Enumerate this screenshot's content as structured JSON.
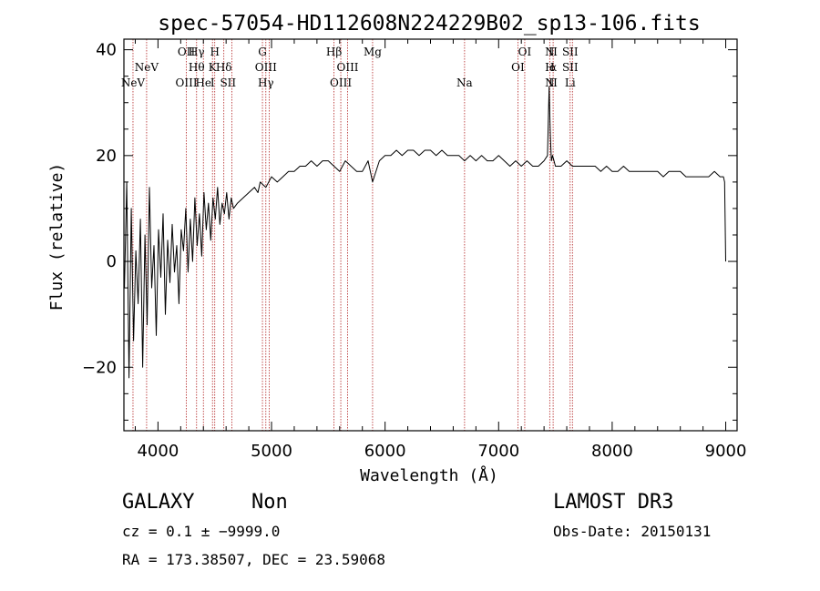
{
  "chart_data": {
    "type": "line",
    "title": "spec-57054-HD112608N224229B02_sp13-106.fits",
    "xlabel": "Wavelength (Å)",
    "ylabel": "Flux (relative)",
    "xlim": [
      3700,
      9100
    ],
    "ylim": [
      -32,
      42
    ],
    "x_ticks": [
      4000,
      5000,
      6000,
      7000,
      8000,
      9000
    ],
    "x_tick_labels": [
      "4000",
      "5000",
      "6000",
      "7000",
      "8000",
      "9000"
    ],
    "y_ticks": [
      -20,
      0,
      20,
      40
    ],
    "y_tick_labels": [
      "−20",
      "0",
      "20",
      "40"
    ],
    "x_minor_step": 200,
    "y_minor_step": 5,
    "series": [
      {
        "name": "spectrum",
        "x": [
          3705,
          3725,
          3745,
          3765,
          3785,
          3805,
          3825,
          3845,
          3865,
          3885,
          3905,
          3925,
          3945,
          3965,
          3985,
          4005,
          4025,
          4045,
          4065,
          4085,
          4105,
          4125,
          4145,
          4165,
          4185,
          4205,
          4225,
          4245,
          4265,
          4285,
          4305,
          4325,
          4345,
          4365,
          4385,
          4405,
          4425,
          4445,
          4465,
          4485,
          4505,
          4525,
          4545,
          4565,
          4585,
          4605,
          4625,
          4645,
          4665,
          4700,
          4750,
          4800,
          4850,
          4880,
          4900,
          4950,
          5000,
          5050,
          5100,
          5150,
          5200,
          5250,
          5300,
          5350,
          5400,
          5450,
          5500,
          5550,
          5600,
          5650,
          5700,
          5750,
          5800,
          5850,
          5890,
          5950,
          6000,
          6050,
          6100,
          6150,
          6200,
          6250,
          6300,
          6350,
          6400,
          6450,
          6500,
          6550,
          6600,
          6650,
          6700,
          6750,
          6800,
          6850,
          6900,
          6950,
          7000,
          7050,
          7100,
          7150,
          7200,
          7250,
          7300,
          7350,
          7400,
          7430,
          7445,
          7455,
          7465,
          7475,
          7500,
          7550,
          7600,
          7650,
          7700,
          7750,
          7800,
          7850,
          7900,
          7950,
          8000,
          8050,
          8100,
          8150,
          8200,
          8250,
          8300,
          8350,
          8400,
          8450,
          8500,
          8550,
          8600,
          8650,
          8700,
          8750,
          8800,
          8850,
          8900,
          8950,
          8980,
          8990,
          9000
        ],
        "y": [
          -5,
          15,
          -22,
          10,
          -15,
          2,
          -8,
          8,
          -20,
          5,
          -12,
          14,
          -5,
          3,
          -14,
          6,
          -3,
          9,
          -10,
          4,
          -4,
          7,
          -2,
          3,
          -8,
          6,
          2,
          10,
          -2,
          8,
          0,
          12,
          3,
          9,
          1,
          13,
          6,
          11,
          4,
          12,
          8,
          14,
          7,
          11,
          9,
          13,
          8,
          12,
          10,
          11,
          12,
          13,
          14,
          13,
          15,
          14,
          16,
          15,
          16,
          17,
          17,
          18,
          18,
          19,
          18,
          19,
          19,
          18,
          17,
          19,
          18,
          17,
          17,
          19,
          15,
          19,
          20,
          20,
          21,
          20,
          21,
          21,
          20,
          21,
          21,
          20,
          21,
          20,
          20,
          20,
          19,
          20,
          19,
          20,
          19,
          19,
          20,
          19,
          18,
          19,
          18,
          19,
          18,
          18,
          19,
          20,
          33,
          24,
          19,
          20,
          18,
          18,
          19,
          18,
          18,
          18,
          18,
          18,
          17,
          18,
          17,
          17,
          18,
          17,
          17,
          17,
          17,
          17,
          17,
          16,
          17,
          17,
          17,
          16,
          16,
          16,
          16,
          16,
          17,
          16,
          16,
          15,
          0
        ]
      }
    ],
    "lines": [
      {
        "wl": 3780,
        "rows": [
          {
            "text": "NeV",
            "tier": 2
          }
        ]
      },
      {
        "wl": 3900,
        "rows": [
          {
            "text": "NeV",
            "tier": 1
          }
        ]
      },
      {
        "wl": 4250,
        "rows": [
          {
            "text": "OII",
            "tier": 0
          },
          {
            "text": "OIII",
            "tier": 2
          }
        ]
      },
      {
        "wl": 4340,
        "rows": [
          {
            "text": "Hγ",
            "tier": 0
          },
          {
            "text": "Hθ",
            "tier": 1
          }
        ]
      },
      {
        "wl": 4400,
        "rows": [
          {
            "text": "He",
            "tier": 2
          }
        ]
      },
      {
        "wl": 4480,
        "rows": [
          {
            "text": "K",
            "tier": 1
          },
          {
            "text": "I",
            "tier": 2
          }
        ]
      },
      {
        "wl": 4500,
        "rows": [
          {
            "text": "H",
            "tier": 0
          }
        ]
      },
      {
        "wl": 4580,
        "rows": [
          {
            "text": "Hδ",
            "tier": 1
          },
          {
            "text": "S",
            "tier": 2
          }
        ]
      },
      {
        "wl": 4650,
        "rows": [
          {
            "text": "II",
            "tier": 2
          }
        ]
      },
      {
        "wl": 4920,
        "rows": [
          {
            "text": "G",
            "tier": 0
          }
        ]
      },
      {
        "wl": 4950,
        "rows": [
          {
            "text": "OIII",
            "tier": 1
          },
          {
            "text": "Hγ",
            "tier": 2
          }
        ]
      },
      {
        "wl": 4980,
        "rows": []
      },
      {
        "wl": 5550,
        "rows": [
          {
            "text": "Hβ",
            "tier": 0
          }
        ]
      },
      {
        "wl": 5610,
        "rows": [
          {
            "text": "OIII",
            "tier": 2
          }
        ]
      },
      {
        "wl": 5670,
        "rows": [
          {
            "text": "OIII",
            "tier": 1
          }
        ]
      },
      {
        "wl": 5890,
        "rows": [
          {
            "text": "Mg",
            "tier": 0
          }
        ]
      },
      {
        "wl": 6700,
        "rows": [
          {
            "text": "Na",
            "tier": 2
          }
        ]
      },
      {
        "wl": 7170,
        "rows": [
          {
            "text": "OI",
            "tier": 1
          }
        ]
      },
      {
        "wl": 7230,
        "rows": [
          {
            "text": "OI",
            "tier": 0
          }
        ]
      },
      {
        "wl": 7450,
        "rows": [
          {
            "text": "N",
            "tier": 0
          },
          {
            "text": "H",
            "tier": 1
          },
          {
            "text": "N",
            "tier": 2
          }
        ]
      },
      {
        "wl": 7480,
        "rows": [
          {
            "text": "II",
            "tier": 0
          },
          {
            "text": "α",
            "tier": 1
          },
          {
            "text": "II",
            "tier": 2
          }
        ]
      },
      {
        "wl": 7630,
        "rows": [
          {
            "text": "SII",
            "tier": 0
          },
          {
            "text": "SII",
            "tier": 1
          },
          {
            "text": "Li",
            "tier": 2
          }
        ]
      },
      {
        "wl": 7650,
        "rows": []
      }
    ]
  },
  "info": {
    "class_label": "GALAXY",
    "subclass_label": "Non",
    "survey_label": "LAMOST DR3",
    "cz_text": "cz = 0.1 ± −9999.0",
    "obs_date_text": "Obs-Date: 20150131",
    "radec_text": "RA = 173.38507, DEC =  23.59068"
  },
  "colors": {
    "spectrum": "#000000",
    "line_marker": "#b22222",
    "axes": "#000000"
  }
}
